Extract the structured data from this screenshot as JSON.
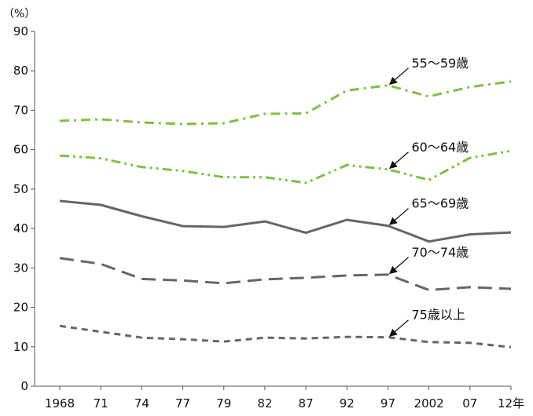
{
  "chart_data": {
    "type": "line",
    "title": "",
    "xlabel": "",
    "ylabel": "",
    "unit_label": "（%）",
    "x": [
      "1968",
      "71",
      "74",
      "77",
      "79",
      "82",
      "87",
      "92",
      "97",
      "2002",
      "07",
      "12年"
    ],
    "ylim": [
      0,
      90
    ],
    "yticks": [
      0,
      10,
      20,
      30,
      40,
      50,
      60,
      70,
      80,
      90
    ],
    "grid": false,
    "legend": "none",
    "series": [
      {
        "name": "55〜59歳",
        "color": "#7dc142",
        "style": "dash-dot",
        "values": [
          67.3,
          67.7,
          66.9,
          66.5,
          66.7,
          69.1,
          69.2,
          75.0,
          76.3,
          73.5,
          75.9,
          77.3
        ]
      },
      {
        "name": "60〜64歳",
        "color": "#7dc142",
        "style": "dash-dot-dot",
        "values": [
          58.5,
          57.8,
          55.6,
          54.6,
          53.0,
          53.0,
          51.6,
          56.1,
          55.0,
          52.3,
          57.9,
          59.7
        ]
      },
      {
        "name": "65〜69歳",
        "color": "#666666",
        "style": "solid",
        "values": [
          47.0,
          46.0,
          43.1,
          40.6,
          40.4,
          41.8,
          38.9,
          42.2,
          40.7,
          36.7,
          38.5,
          39.0
        ]
      },
      {
        "name": "70〜74歳",
        "color": "#666666",
        "style": "long-dash",
        "values": [
          32.5,
          31.0,
          27.2,
          26.8,
          26.1,
          27.1,
          27.5,
          28.1,
          28.3,
          24.4,
          25.1,
          24.7
        ]
      },
      {
        "name": "75歳以上",
        "color": "#666666",
        "style": "short-dash",
        "values": [
          15.3,
          13.8,
          12.3,
          11.9,
          11.3,
          12.3,
          12.1,
          12.5,
          12.4,
          11.2,
          11.0,
          9.9
        ]
      }
    ],
    "annotations": [
      {
        "text": "55〜59歳",
        "series": 0,
        "point_index": 8
      },
      {
        "text": "60〜64歳",
        "series": 1,
        "point_index": 8
      },
      {
        "text": "65〜69歳",
        "series": 2,
        "point_index": 8
      },
      {
        "text": "70〜74歳",
        "series": 3,
        "point_index": 8
      },
      {
        "text": "75歳以上",
        "series": 4,
        "point_index": 8
      }
    ]
  }
}
